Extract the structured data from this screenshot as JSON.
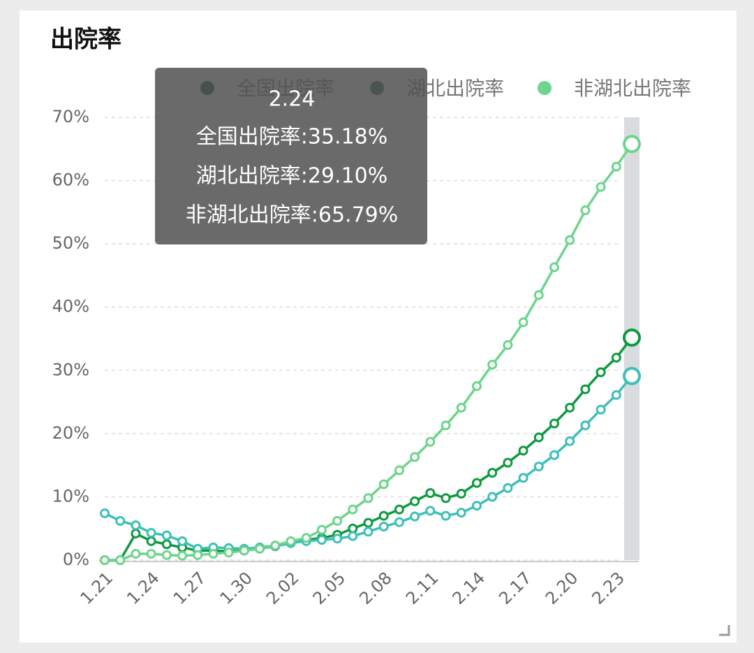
{
  "chart_data": {
    "type": "line",
    "title": "出院率",
    "categories": [
      "1.21",
      null,
      null,
      "1.24",
      null,
      null,
      "1.27",
      null,
      null,
      "1.30",
      null,
      null,
      "2.02",
      null,
      null,
      "2.05",
      null,
      null,
      "2.08",
      null,
      null,
      "2.11",
      null,
      null,
      "2.14",
      null,
      null,
      "2.17",
      null,
      null,
      "2.20",
      null,
      null,
      "2.23",
      null
    ],
    "series": [
      {
        "name": "全国出院率",
        "color": "#0f9a3f",
        "values": [
          0,
          0,
          4.2,
          3.0,
          2.5,
          2.0,
          1.5,
          1.5,
          1.4,
          1.5,
          1.8,
          2.2,
          2.7,
          3.2,
          3.5,
          4.0,
          5.0,
          5.9,
          7.0,
          8.0,
          9.3,
          10.6,
          9.8,
          10.5,
          12.2,
          13.8,
          15.4,
          17.3,
          19.4,
          21.6,
          24.1,
          27.0,
          29.7,
          32.0,
          35.18
        ]
      },
      {
        "name": "湖北出院率",
        "color": "#3ebfb8",
        "values": [
          7.4,
          6.2,
          5.5,
          4.3,
          3.9,
          3.0,
          1.8,
          2.0,
          1.9,
          1.8,
          2.0,
          2.3,
          2.7,
          3.0,
          3.2,
          3.4,
          3.8,
          4.5,
          5.3,
          6.0,
          6.9,
          7.8,
          7.0,
          7.5,
          8.6,
          10.0,
          11.4,
          13.0,
          14.8,
          16.6,
          18.8,
          21.3,
          23.8,
          26.1,
          29.1
        ]
      },
      {
        "name": "非湖北出院率",
        "color": "#6dd58c",
        "values": [
          0,
          0,
          1.0,
          1.0,
          0.8,
          0.7,
          0.8,
          1.0,
          1.2,
          1.5,
          1.8,
          2.3,
          3.0,
          3.5,
          4.8,
          6.2,
          8.0,
          9.8,
          12.0,
          14.2,
          16.3,
          18.7,
          21.3,
          24.1,
          27.5,
          30.9,
          34.0,
          37.6,
          41.9,
          46.3,
          50.6,
          55.3,
          59.0,
          62.2,
          65.79
        ]
      }
    ],
    "legend_colors": [
      "#1e5e36",
      "#2f6e67",
      "#6dd58c"
    ],
    "ylim": [
      0,
      70
    ],
    "yticks": [
      {
        "value": 0,
        "label": "0%"
      },
      {
        "value": 10,
        "label": "10%"
      },
      {
        "value": 20,
        "label": "20%"
      },
      {
        "value": 30,
        "label": "30%"
      },
      {
        "value": 40,
        "label": "40%"
      },
      {
        "value": 50,
        "label": "50%"
      },
      {
        "value": 60,
        "label": "60%"
      },
      {
        "value": 70,
        "label": "70%"
      }
    ],
    "grid": true,
    "tooltip": {
      "title": "2.24",
      "lines": [
        "全国出院率:35.18%",
        "湖北出院率:29.10%",
        "非湖北出院率:65.79%"
      ]
    }
  }
}
